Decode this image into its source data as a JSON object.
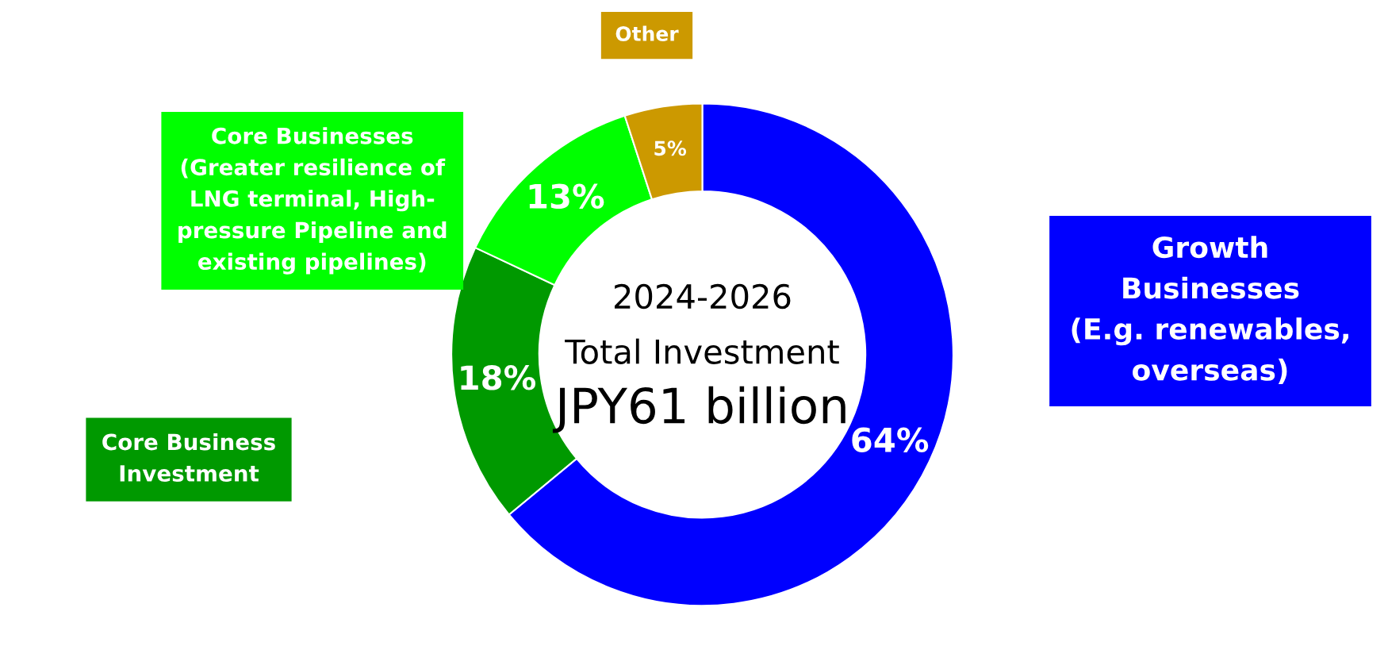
{
  "chart_data": {
    "type": "donut",
    "categories": [
      "Growth\nBusinesses\n(E.g. renewables,\noverseas)",
      "Core Business\nInvestment",
      "Core Businesses\n(Greater resilience of\nLNG terminal, High-\npressure Pipeline and\nexisting pipelines)",
      "Other"
    ],
    "values": [
      64,
      18,
      13,
      5
    ],
    "colors": [
      "#0000ff",
      "#009900",
      "#00ff00",
      "#cc9900"
    ],
    "value_labels": [
      "64%",
      "18%",
      "13%",
      "5%"
    ],
    "annotations": [
      "2024-2026",
      "Total Investment",
      "JPY61 billion"
    ],
    "legend": false
  }
}
